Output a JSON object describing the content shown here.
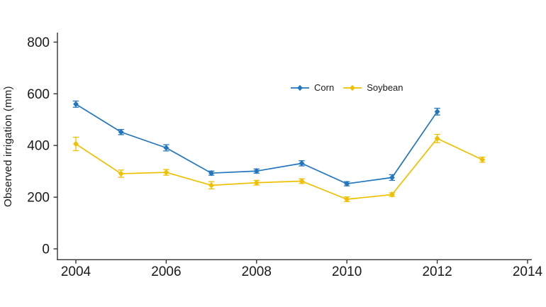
{
  "chart_data": {
    "type": "line",
    "title": "",
    "xlabel": "",
    "ylabel": "Observed irrigation (mm)",
    "grid": false,
    "background": "#ffffff",
    "axis_color": "#333333",
    "text_color": "#1a1a1a",
    "legend_position": "inside-top-center",
    "marker": "diamond",
    "error_bars": true,
    "x_ticks": [
      2004,
      2006,
      2008,
      2010,
      2012,
      2014
    ],
    "y_ticks": [
      0,
      200,
      400,
      600,
      800
    ],
    "xlim": [
      2003.6,
      2014.4
    ],
    "ylim": [
      0,
      800
    ],
    "series": [
      {
        "name": "Corn",
        "color": "#2276BE",
        "x": [
          2004,
          2005,
          2006,
          2007,
          2008,
          2009,
          2010,
          2011,
          2012
        ],
        "y": [
          560,
          452,
          391,
          293,
          301,
          331,
          252,
          276,
          531
        ],
        "err": [
          12,
          10,
          12,
          8,
          8,
          10,
          8,
          11,
          13
        ]
      },
      {
        "name": "Soybean",
        "color": "#EFC000",
        "x": [
          2004,
          2005,
          2006,
          2007,
          2008,
          2009,
          2010,
          2011,
          2012,
          2013
        ],
        "y": [
          406,
          291,
          296,
          246,
          256,
          262,
          192,
          210,
          427,
          345
        ],
        "err": [
          26,
          14,
          11,
          14,
          9,
          9,
          9,
          7,
          16,
          10
        ]
      }
    ]
  }
}
